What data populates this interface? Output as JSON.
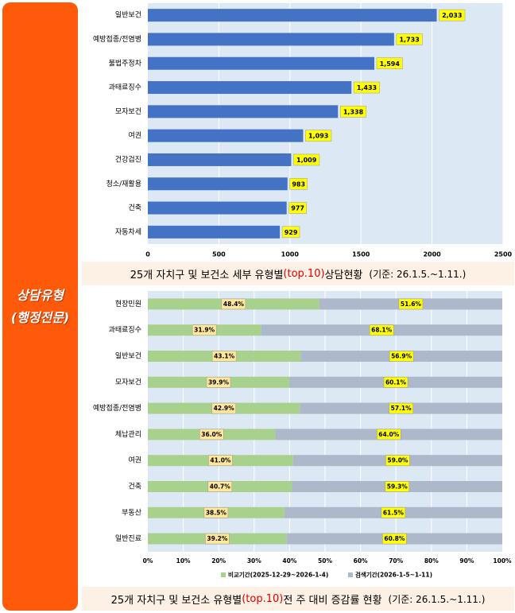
{
  "sidebar": {
    "line1": "상담유형",
    "line2": "(행정전문)"
  },
  "colors": {
    "accent": "#ff5a0a",
    "bar_blue": "#4472c4",
    "label_yellow": "#ffff00",
    "prev_green": "#a9d18e",
    "curr_gray": "#adb9ca",
    "plot_bg": "#dde8f5",
    "caption_bg": "#fdf0e4"
  },
  "captions": {
    "top": {
      "pre": "25개 자치구 및 보건소 세부 유형별",
      "hl": "(top.10)",
      "post": " 상담현황",
      "std": "(기준: 26.1.5.~1.11.)"
    },
    "bottom": {
      "pre": "25개 자치구 및 보건소 유형별",
      "hl": "(top.10)",
      "post": " 전 주 대비 증감률 현황",
      "std": "(기준: 26.1.5.~1.11.)"
    }
  },
  "chart_data": [
    {
      "type": "bar",
      "orientation": "horizontal",
      "categories": [
        "일반보건",
        "예방접종/전염병",
        "불법주정차",
        "과태료징수",
        "모자보건",
        "여권",
        "건강검진",
        "청소/재활용",
        "건축",
        "자동차세"
      ],
      "values": [
        2033,
        1733,
        1594,
        1433,
        1338,
        1093,
        1009,
        983,
        977,
        929
      ],
      "value_labels": [
        "2,033",
        "1,733",
        "1,594",
        "1,433",
        "1,338",
        "1,093",
        "1,009",
        "983",
        "977",
        "929"
      ],
      "xlim": [
        0,
        2500
      ],
      "xticks": [
        "0",
        "500",
        "1000",
        "1500",
        "2000",
        "2500"
      ],
      "grid": true
    },
    {
      "type": "bar",
      "orientation": "horizontal",
      "stacked": "percent",
      "categories": [
        "현장민원",
        "과태료징수",
        "일반보건",
        "모자보건",
        "예방접종/전염병",
        "체납관리",
        "여권",
        "건축",
        "부동산",
        "일반진료"
      ],
      "series": [
        {
          "name": "비교기간(2025-12-29~2026-1-4)",
          "values": [
            48.4,
            31.9,
            43.1,
            39.9,
            42.9,
            36.0,
            41.0,
            40.7,
            38.5,
            39.2
          ],
          "labels": [
            "48.4%",
            "31.9%",
            "43.1%",
            "39.9%",
            "42.9%",
            "36.0%",
            "41.0%",
            "40.7%",
            "38.5%",
            "39.2%"
          ]
        },
        {
          "name": "검색기간(2026-1-5~1-11)",
          "values": [
            51.6,
            68.1,
            56.9,
            60.1,
            57.1,
            64.0,
            59.0,
            59.3,
            61.5,
            60.8
          ],
          "labels": [
            "51.6%",
            "68.1%",
            "56.9%",
            "60.1%",
            "57.1%",
            "64.0%",
            "59.0%",
            "59.3%",
            "61.5%",
            "60.8%"
          ]
        }
      ],
      "xlim": [
        0,
        100
      ],
      "xticks": [
        "0%",
        "10%",
        "20%",
        "30%",
        "40%",
        "50%",
        "60%",
        "70%",
        "80%",
        "90%",
        "100%"
      ],
      "legend": "bottom",
      "grid": true
    }
  ]
}
